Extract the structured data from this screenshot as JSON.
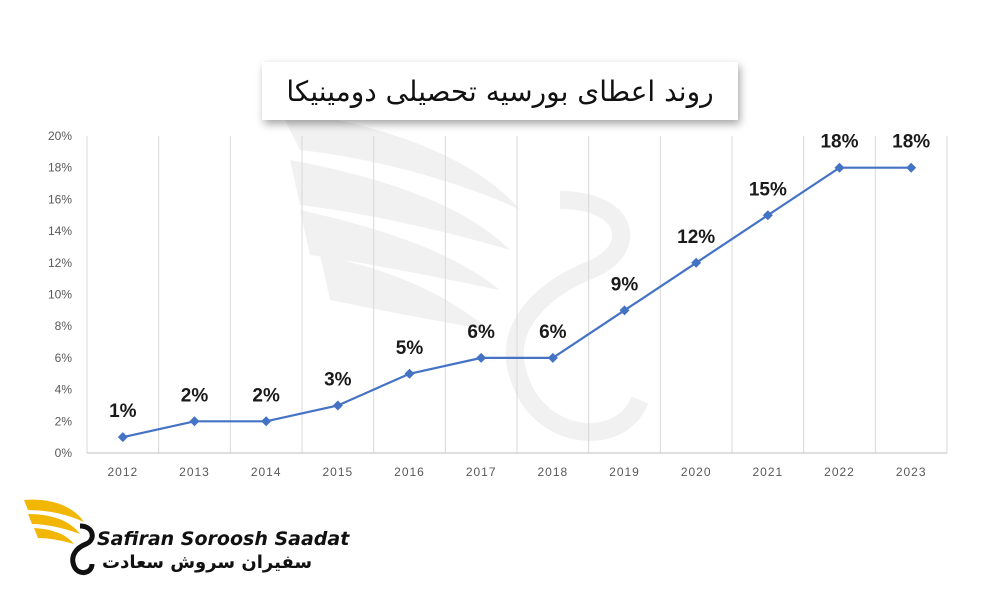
{
  "chart_data": {
    "type": "line",
    "title": "روند اعطای بورسیه تحصیلی دومینیکا",
    "categories": [
      "2012",
      "2013",
      "2014",
      "2015",
      "2016",
      "2017",
      "2018",
      "2019",
      "2020",
      "2021",
      "2022",
      "2023"
    ],
    "series": [
      {
        "values": [
          1,
          2,
          2,
          3,
          5,
          6,
          6,
          9,
          12,
          15,
          18,
          18
        ]
      }
    ],
    "data_labels": [
      "1%",
      "2%",
      "2%",
      "3%",
      "5%",
      "6%",
      "6%",
      "9%",
      "12%",
      "15%",
      "18%",
      "18%"
    ],
    "y_ticks": [
      "0%",
      "2%",
      "4%",
      "6%",
      "8%",
      "10%",
      "12%",
      "14%",
      "16%",
      "18%",
      "20%"
    ],
    "ylim": [
      0,
      20
    ],
    "y_unit": "%",
    "grid": "vertical",
    "line_color": "#4472c4"
  },
  "logo": {
    "name_en": "Safiran Soroosh Saadat",
    "name_fa": "سفیران سروش سعادت",
    "accent_color": "#f2b705"
  }
}
